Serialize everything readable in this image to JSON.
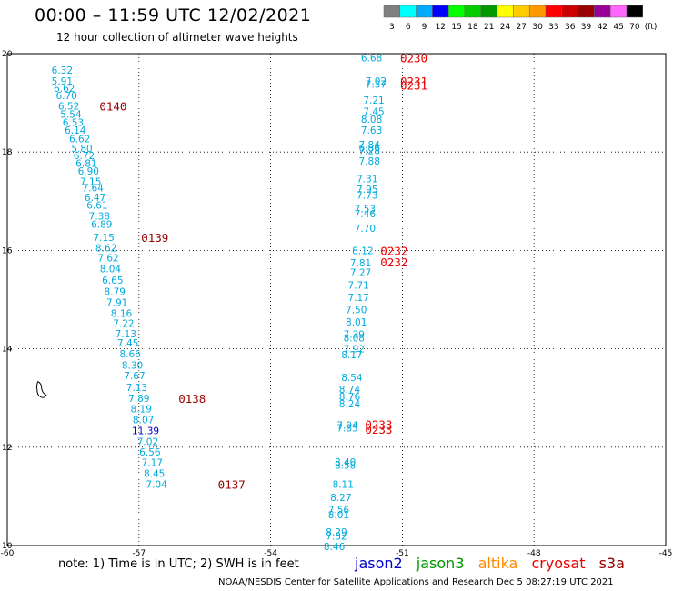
{
  "header": {
    "title": "00:00 – 11:59 UTC 12/02/2021",
    "subtitle": "12 hour collection of altimeter wave heights"
  },
  "colorbar": {
    "colors": [
      "#7f7f7f",
      "#00ffff",
      "#00aaff",
      "#0000ff",
      "#00ff00",
      "#00cc00",
      "#009900",
      "#ffff00",
      "#ffcc00",
      "#ff9900",
      "#ff0000",
      "#cc0000",
      "#990000",
      "#990099",
      "#ff66ff",
      "#000000"
    ],
    "labels": [
      "3",
      "6",
      "9",
      "12",
      "15",
      "18",
      "21",
      "24",
      "27",
      "30",
      "33",
      "36",
      "39",
      "42",
      "45",
      "70"
    ],
    "unit": "(ft)"
  },
  "chart_data": {
    "type": "scatter",
    "title": "00:00 – 11:59 UTC 12/02/2021",
    "subtitle": "12 hour collection of altimeter wave heights",
    "xlim": [
      -60,
      -45
    ],
    "ylim": [
      10,
      20
    ],
    "x_ticks": [
      "-60",
      "-57",
      "-54",
      "-51",
      "-48",
      "-45"
    ],
    "y_ticks": [
      "10",
      "12",
      "14",
      "16",
      "18",
      "20"
    ],
    "grid": true,
    "colors": {
      "wave": "#00aadd",
      "time": "#990000",
      "time_red": "#ee0000",
      "jason2": "#0000cc",
      "island": "#000000"
    },
    "series": [
      {
        "name": "cryosat",
        "points": [
          {
            "lon": -58.75,
            "lat": 19.67,
            "v": "6.32"
          },
          {
            "lon": -58.75,
            "lat": 19.45,
            "v": "5.91"
          },
          {
            "lon": -58.7,
            "lat": 19.3,
            "v": "6.62"
          },
          {
            "lon": -58.65,
            "lat": 19.15,
            "v": "6.70"
          },
          {
            "lon": -58.6,
            "lat": 18.94,
            "v": "6.52"
          },
          {
            "lon": -58.55,
            "lat": 18.77,
            "v": "5.54"
          },
          {
            "lon": -58.5,
            "lat": 18.6,
            "v": "6.53"
          },
          {
            "lon": -58.45,
            "lat": 18.45,
            "v": "6.14"
          },
          {
            "lon": -58.35,
            "lat": 18.27,
            "v": "6.62"
          },
          {
            "lon": -58.3,
            "lat": 18.08,
            "v": "5.80"
          },
          {
            "lon": -58.25,
            "lat": 17.93,
            "v": "6.72"
          },
          {
            "lon": -58.2,
            "lat": 17.77,
            "v": "6.81"
          },
          {
            "lon": -58.15,
            "lat": 17.62,
            "v": "6.90"
          },
          {
            "lon": -58.1,
            "lat": 17.4,
            "v": "7.15"
          },
          {
            "lon": -58.05,
            "lat": 17.27,
            "v": "7.64"
          },
          {
            "lon": -58.0,
            "lat": 17.08,
            "v": "6.47"
          },
          {
            "lon": -57.95,
            "lat": 16.92,
            "v": "6.61"
          },
          {
            "lon": -57.9,
            "lat": 16.7,
            "v": "7.38"
          },
          {
            "lon": -57.85,
            "lat": 16.53,
            "v": "6.89"
          },
          {
            "lon": -57.8,
            "lat": 16.27,
            "v": "7.15"
          },
          {
            "lon": -57.75,
            "lat": 16.05,
            "v": "8.62"
          },
          {
            "lon": -57.7,
            "lat": 15.85,
            "v": "7.62"
          },
          {
            "lon": -57.65,
            "lat": 15.63,
            "v": "8.04"
          },
          {
            "lon": -57.6,
            "lat": 15.4,
            "v": "6.65"
          },
          {
            "lon": -57.55,
            "lat": 15.17,
            "v": "8.79"
          },
          {
            "lon": -57.5,
            "lat": 14.94,
            "v": "7.91"
          },
          {
            "lon": -57.4,
            "lat": 14.72,
            "v": "8.16"
          },
          {
            "lon": -57.35,
            "lat": 14.52,
            "v": "7.22"
          },
          {
            "lon": -57.3,
            "lat": 14.31,
            "v": "7.13"
          },
          {
            "lon": -57.25,
            "lat": 14.12,
            "v": "7.45"
          },
          {
            "lon": -57.2,
            "lat": 13.9,
            "v": "8.66"
          },
          {
            "lon": -57.15,
            "lat": 13.67,
            "v": "8.30"
          },
          {
            "lon": -57.1,
            "lat": 13.46,
            "v": "7.67"
          },
          {
            "lon": -57.05,
            "lat": 13.22,
            "v": "7.13"
          },
          {
            "lon": -57.0,
            "lat": 12.99,
            "v": "7.89"
          },
          {
            "lon": -56.95,
            "lat": 12.78,
            "v": "8.19"
          },
          {
            "lon": -56.9,
            "lat": 12.56,
            "v": "8.07"
          },
          {
            "lon": -56.85,
            "lat": 12.34,
            "v": "11.39",
            "c": "#0000cc"
          },
          {
            "lon": -56.8,
            "lat": 12.12,
            "v": "7.02"
          },
          {
            "lon": -56.75,
            "lat": 11.9,
            "v": "6.56"
          },
          {
            "lon": -56.7,
            "lat": 11.69,
            "v": "7.17"
          },
          {
            "lon": -56.65,
            "lat": 11.47,
            "v": "8.45"
          },
          {
            "lon": -56.6,
            "lat": 11.25,
            "v": "7.04"
          }
        ],
        "time_labels": [
          {
            "lon": -57.9,
            "lat": 18.94,
            "t": "0140"
          },
          {
            "lon": -56.95,
            "lat": 16.27,
            "t": "0139"
          },
          {
            "lon": -56.1,
            "lat": 12.99,
            "t": "0138"
          },
          {
            "lon": -55.2,
            "lat": 11.25,
            "t": "0137"
          }
        ]
      },
      {
        "name": "s3a",
        "points": [
          {
            "lon": -51.7,
            "lat": 19.92,
            "v": "6.68"
          },
          {
            "lon": -51.6,
            "lat": 19.45,
            "v": "7.02"
          },
          {
            "lon": -51.6,
            "lat": 19.38,
            "v": "7.37"
          },
          {
            "lon": -51.65,
            "lat": 19.06,
            "v": "7.21"
          },
          {
            "lon": -51.65,
            "lat": 18.83,
            "v": "7.45"
          },
          {
            "lon": -51.7,
            "lat": 18.67,
            "v": "8.08"
          },
          {
            "lon": -51.7,
            "lat": 18.45,
            "v": "7.63"
          },
          {
            "lon": -51.75,
            "lat": 18.15,
            "v": "7.84"
          },
          {
            "lon": -51.75,
            "lat": 18.09,
            "v": "6.86"
          },
          {
            "lon": -51.75,
            "lat": 18.03,
            "v": "7.28"
          },
          {
            "lon": -51.75,
            "lat": 17.82,
            "v": "7.88"
          },
          {
            "lon": -51.8,
            "lat": 17.46,
            "v": "7.31"
          },
          {
            "lon": -51.8,
            "lat": 17.25,
            "v": "7.95"
          },
          {
            "lon": -51.8,
            "lat": 17.13,
            "v": "7.73"
          },
          {
            "lon": -51.85,
            "lat": 16.85,
            "v": "7.53"
          },
          {
            "lon": -51.85,
            "lat": 16.75,
            "v": "7.46"
          },
          {
            "lon": -51.85,
            "lat": 16.45,
            "v": "7.70"
          },
          {
            "lon": -51.9,
            "lat": 16.0,
            "v": "8.12"
          },
          {
            "lon": -51.95,
            "lat": 15.75,
            "v": "7.81"
          },
          {
            "lon": -51.95,
            "lat": 15.55,
            "v": "7.27"
          },
          {
            "lon": -52.0,
            "lat": 15.3,
            "v": "7.71"
          },
          {
            "lon": -52.0,
            "lat": 15.05,
            "v": "7.17"
          },
          {
            "lon": -52.05,
            "lat": 14.8,
            "v": "7.50"
          },
          {
            "lon": -52.05,
            "lat": 14.55,
            "v": "8.01"
          },
          {
            "lon": -52.1,
            "lat": 14.3,
            "v": "7.39"
          },
          {
            "lon": -52.1,
            "lat": 14.22,
            "v": "8.08"
          },
          {
            "lon": -52.1,
            "lat": 14.0,
            "v": "7.92"
          },
          {
            "lon": -52.15,
            "lat": 13.88,
            "v": "8.17"
          },
          {
            "lon": -52.15,
            "lat": 13.42,
            "v": "8.54"
          },
          {
            "lon": -52.2,
            "lat": 13.18,
            "v": "8.74"
          },
          {
            "lon": -52.2,
            "lat": 13.03,
            "v": "8.76"
          },
          {
            "lon": -52.2,
            "lat": 12.88,
            "v": "8.24"
          },
          {
            "lon": -52.25,
            "lat": 12.45,
            "v": "7.94"
          },
          {
            "lon": -52.25,
            "lat": 12.39,
            "v": "7.85"
          },
          {
            "lon": -52.3,
            "lat": 11.7,
            "v": "8.40"
          },
          {
            "lon": -52.3,
            "lat": 11.64,
            "v": "8.58"
          },
          {
            "lon": -52.35,
            "lat": 11.25,
            "v": "8.11"
          },
          {
            "lon": -52.4,
            "lat": 10.98,
            "v": "8.27"
          },
          {
            "lon": -52.45,
            "lat": 10.73,
            "v": "7.56"
          },
          {
            "lon": -52.45,
            "lat": 10.63,
            "v": "8.01"
          },
          {
            "lon": -52.5,
            "lat": 10.28,
            "v": "8.29"
          },
          {
            "lon": -52.5,
            "lat": 10.19,
            "v": "7.32"
          },
          {
            "lon": -52.55,
            "lat": 9.98,
            "v": "8.46"
          }
        ],
        "time_labels": [
          {
            "lon": -51.05,
            "lat": 19.92,
            "t": "0230"
          },
          {
            "lon": -51.05,
            "lat": 19.45,
            "t": "0231"
          },
          {
            "lon": -51.05,
            "lat": 19.36,
            "t": "0231"
          },
          {
            "lon": -51.5,
            "lat": 16.0,
            "t": "0232"
          },
          {
            "lon": -51.5,
            "lat": 15.77,
            "t": "0232"
          },
          {
            "lon": -51.85,
            "lat": 12.47,
            "t": "0233"
          },
          {
            "lon": -51.85,
            "lat": 12.37,
            "t": "0233"
          }
        ]
      }
    ],
    "island": {
      "name": "Dominica outline",
      "lon": -59.3,
      "lat": 13.15
    }
  },
  "footer": {
    "note": "note: 1) Time is in UTC; 2) SWH is in feet",
    "legend": [
      {
        "label": "jason2",
        "color": "#0000cc"
      },
      {
        "label": "jason3",
        "color": "#009900"
      },
      {
        "label": "altika",
        "color": "#ff8800"
      },
      {
        "label": "cryosat",
        "color": "#ee0000"
      },
      {
        "label": "s3a",
        "color": "#990000"
      }
    ],
    "credit": "NOAA/NESDIS Center for Satellite Applications and Research    Dec  5 08:27:19 UTC 2021"
  }
}
